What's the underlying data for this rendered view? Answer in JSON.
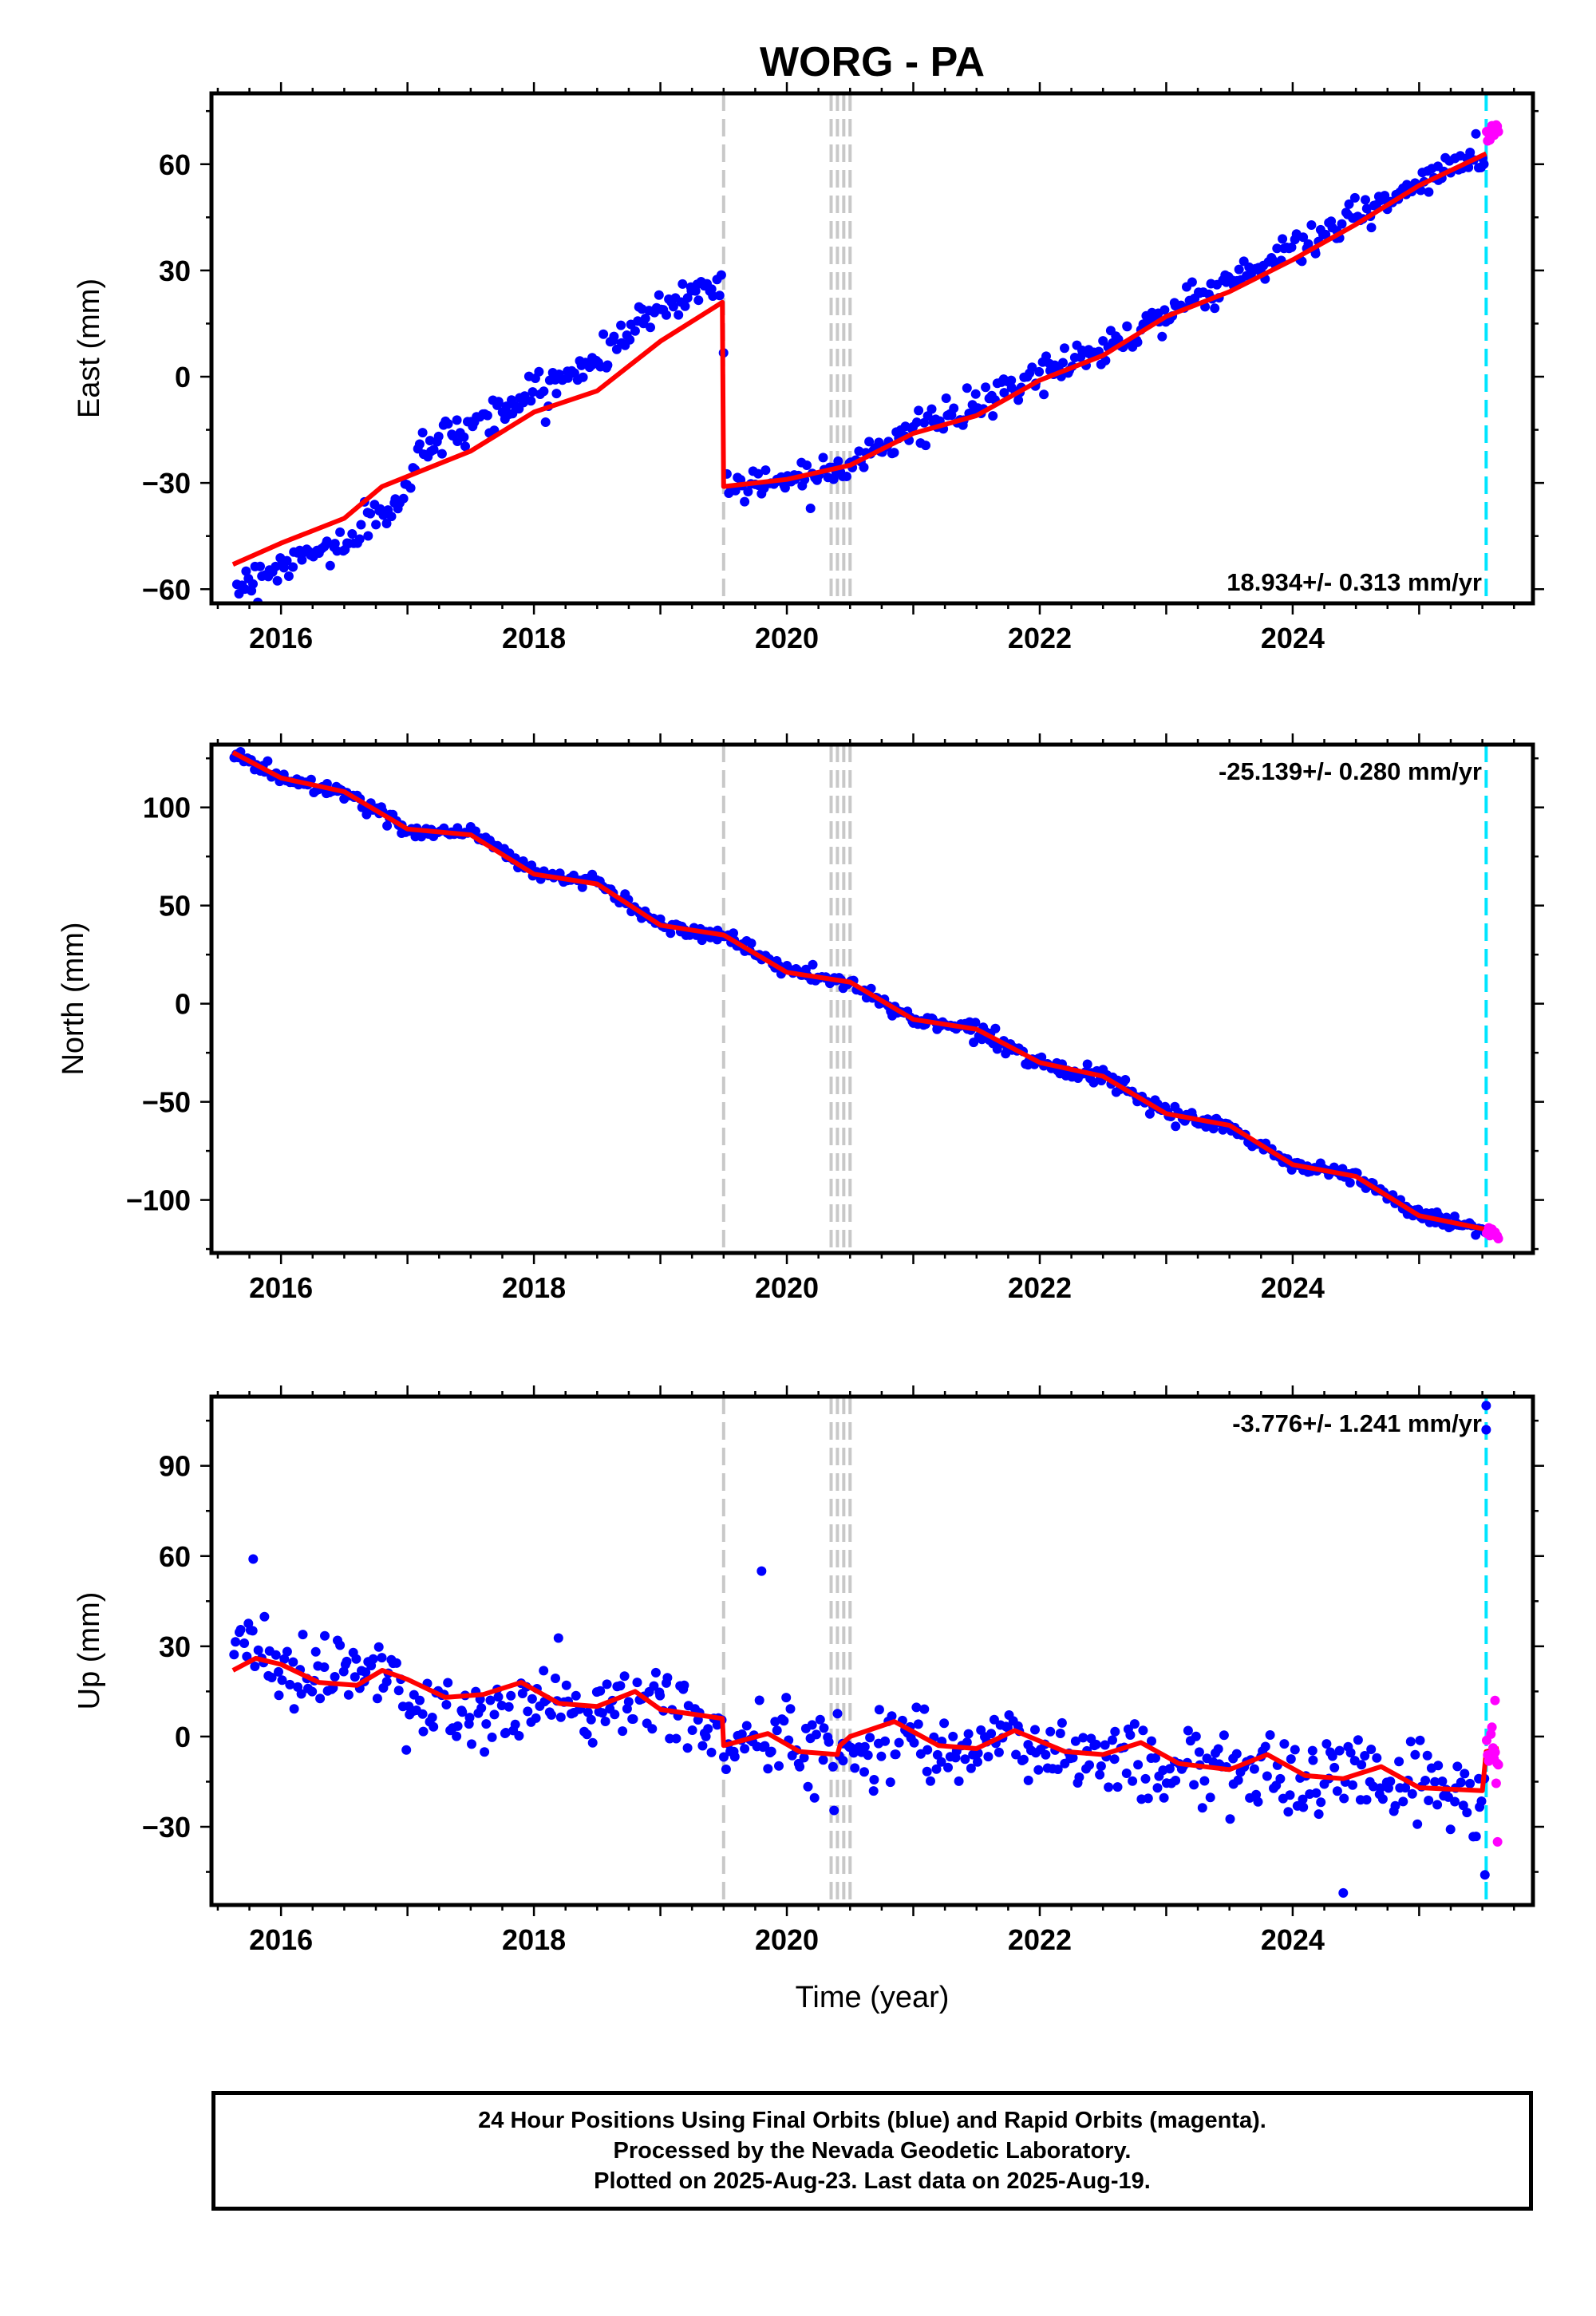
{
  "title": "WORG - PA",
  "colors": {
    "final_orbits": "#0000ff",
    "rapid_orbits": "#ff00ff",
    "model": "#ff0000",
    "equipment_change": "#c8c8c8",
    "last_data": "#00e5ff"
  },
  "x_axis": {
    "label": "Time (year)",
    "range": [
      2015.45,
      2025.9
    ],
    "ticks": [
      2016,
      2018,
      2020,
      2022,
      2024
    ],
    "tick_labels": [
      "2016",
      "2018",
      "2020",
      "2022",
      "2024"
    ]
  },
  "chart_data": [
    {
      "type": "scatter",
      "id": "east",
      "ylabel": "East (mm)",
      "ylim": [
        -64,
        80
      ],
      "yticks": [
        -60,
        -30,
        0,
        30,
        60
      ],
      "ytick_labels": [
        "−60",
        "−30",
        "0",
        "30",
        "60"
      ],
      "velocity_label": "18.934+/- 0.313 mm/yr",
      "velocity_position": "bottom-right",
      "data_start": 2015.62,
      "final_end": 2025.53,
      "rapid_end": 2025.63,
      "offsets": [
        2019.5,
        2020.35,
        2020.4,
        2020.45,
        2020.5
      ],
      "last_data_line": 2025.53,
      "series": [
        {
          "name": "Final Orbits",
          "color": "#0000ff",
          "nodes": [
            [
              2015.62,
              -60
            ],
            [
              2016.0,
              -53
            ],
            [
              2016.5,
              -47
            ],
            [
              2017.0,
              -33
            ],
            [
              2017.1,
              -20
            ],
            [
              2018.0,
              -5
            ],
            [
              2018.5,
              5
            ],
            [
              2019.0,
              20
            ],
            [
              2019.49,
              27
            ],
            [
              2019.52,
              -31
            ],
            [
              2020.0,
              -29
            ],
            [
              2020.5,
              -24
            ],
            [
              2021.0,
              -15
            ],
            [
              2021.5,
              -9
            ],
            [
              2022.0,
              1
            ],
            [
              2022.5,
              8
            ],
            [
              2023.0,
              18
            ],
            [
              2023.5,
              27
            ],
            [
              2024.0,
              36
            ],
            [
              2024.5,
              45
            ],
            [
              2025.0,
              54
            ],
            [
              2025.53,
              64
            ]
          ]
        },
        {
          "name": "Rapid Orbits",
          "color": "#ff00ff",
          "nodes": [
            [
              2025.55,
              68
            ],
            [
              2025.63,
              70
            ]
          ]
        }
      ],
      "model": {
        "color": "#ff0000",
        "nodes": [
          [
            2015.62,
            -53
          ],
          [
            2016.0,
            -47
          ],
          [
            2016.5,
            -40
          ],
          [
            2016.8,
            -31
          ],
          [
            2017.5,
            -21
          ],
          [
            2018.0,
            -10
          ],
          [
            2018.5,
            -4
          ],
          [
            2019.0,
            10
          ],
          [
            2019.49,
            21
          ],
          [
            2019.5,
            -31
          ],
          [
            2020.0,
            -29
          ],
          [
            2020.5,
            -25
          ],
          [
            2021.0,
            -16
          ],
          [
            2021.5,
            -11
          ],
          [
            2022.0,
            -1
          ],
          [
            2022.5,
            6
          ],
          [
            2023.0,
            17
          ],
          [
            2023.5,
            24
          ],
          [
            2024.0,
            33
          ],
          [
            2024.5,
            43
          ],
          [
            2025.0,
            54
          ],
          [
            2025.53,
            63
          ]
        ]
      }
    },
    {
      "type": "scatter",
      "id": "north",
      "ylabel": "North (mm)",
      "ylim": [
        -127,
        132
      ],
      "yticks": [
        -100,
        -50,
        0,
        50,
        100
      ],
      "ytick_labels": [
        "−100",
        "−50",
        "0",
        "50",
        "100"
      ],
      "velocity_label": "-25.139+/- 0.280 mm/yr",
      "velocity_position": "top-right",
      "data_start": 2015.62,
      "final_end": 2025.53,
      "rapid_end": 2025.63,
      "offsets": [
        2019.5,
        2020.35,
        2020.4,
        2020.45,
        2020.5
      ],
      "last_data_line": 2025.53,
      "series": [
        {
          "name": "Final Orbits",
          "color": "#0000ff",
          "nodes": [
            [
              2015.62,
              128
            ],
            [
              2016.0,
              115
            ],
            [
              2016.5,
              108
            ],
            [
              2017.0,
              88
            ],
            [
              2017.5,
              88
            ],
            [
              2018.0,
              67
            ],
            [
              2018.5,
              62
            ],
            [
              2019.0,
              40
            ],
            [
              2019.5,
              35
            ],
            [
              2020.0,
              17
            ],
            [
              2020.5,
              10
            ],
            [
              2021.0,
              -8
            ],
            [
              2021.5,
              -13
            ],
            [
              2022.0,
              -30
            ],
            [
              2022.5,
              -38
            ],
            [
              2023.0,
              -56
            ],
            [
              2023.5,
              -63
            ],
            [
              2024.0,
              -82
            ],
            [
              2024.5,
              -88
            ],
            [
              2025.0,
              -108
            ],
            [
              2025.53,
              -115
            ]
          ]
        },
        {
          "name": "Rapid Orbits",
          "color": "#ff00ff",
          "nodes": [
            [
              2025.55,
              -117
            ],
            [
              2025.63,
              -120
            ]
          ]
        }
      ],
      "model": {
        "color": "#ff0000",
        "nodes": [
          [
            2015.62,
            128
          ],
          [
            2016.0,
            115
          ],
          [
            2016.5,
            108
          ],
          [
            2017.0,
            89
          ],
          [
            2017.5,
            86
          ],
          [
            2018.0,
            66
          ],
          [
            2018.5,
            61
          ],
          [
            2019.0,
            40
          ],
          [
            2019.5,
            35
          ],
          [
            2020.0,
            16
          ],
          [
            2020.5,
            11
          ],
          [
            2021.0,
            -8
          ],
          [
            2021.5,
            -13
          ],
          [
            2022.0,
            -30
          ],
          [
            2022.5,
            -37
          ],
          [
            2023.0,
            -56
          ],
          [
            2023.5,
            -62
          ],
          [
            2024.0,
            -82
          ],
          [
            2024.5,
            -88
          ],
          [
            2025.0,
            -108
          ],
          [
            2025.53,
            -115
          ]
        ]
      }
    },
    {
      "type": "scatter",
      "id": "up",
      "ylabel": "Up (mm)",
      "ylim": [
        -56,
        113
      ],
      "yticks": [
        -30,
        0,
        30,
        60,
        90
      ],
      "ytick_labels": [
        "−30",
        "0",
        "30",
        "60",
        "90"
      ],
      "velocity_label": "-3.776+/- 1.241 mm/yr",
      "velocity_position": "top-right",
      "data_start": 2015.62,
      "final_end": 2025.53,
      "rapid_end": 2025.63,
      "offsets": [
        2019.5,
        2020.35,
        2020.4,
        2020.45,
        2020.5
      ],
      "last_data_line": 2025.53,
      "series": [
        {
          "name": "Final Orbits",
          "color": "#0000ff",
          "nodes": [
            [
              2015.62,
              28
            ],
            [
              2016.0,
              24
            ],
            [
              2016.5,
              20
            ],
            [
              2016.8,
              25
            ],
            [
              2017.0,
              12
            ],
            [
              2017.5,
              4
            ],
            [
              2018.0,
              12
            ],
            [
              2018.5,
              8
            ],
            [
              2019.0,
              13
            ],
            [
              2019.5,
              -2
            ],
            [
              2020.0,
              -2
            ],
            [
              2020.5,
              -5
            ],
            [
              2021.0,
              1
            ],
            [
              2021.5,
              -3
            ],
            [
              2022.0,
              -4
            ],
            [
              2022.5,
              -6
            ],
            [
              2023.0,
              -10
            ],
            [
              2023.5,
              -10
            ],
            [
              2024.0,
              -14
            ],
            [
              2024.5,
              -12
            ],
            [
              2025.0,
              -16
            ],
            [
              2025.53,
              -20
            ]
          ],
          "outliers": [
            [
              2015.78,
              59
            ],
            [
              2019.8,
              55
            ],
            [
              2024.4,
              -52
            ],
            [
              2025.52,
              -46
            ],
            [
              2025.53,
              102
            ],
            [
              2025.53,
              110
            ]
          ]
        },
        {
          "name": "Rapid Orbits",
          "color": "#ff00ff",
          "nodes": [
            [
              2025.55,
              -5
            ],
            [
              2025.63,
              -8
            ]
          ],
          "outliers": [
            [
              2025.6,
              12
            ],
            [
              2025.62,
              -35
            ]
          ]
        }
      ],
      "model": {
        "color": "#ff0000",
        "nodes": [
          [
            2015.62,
            22
          ],
          [
            2015.8,
            26
          ],
          [
            2016.0,
            24
          ],
          [
            2016.3,
            18
          ],
          [
            2016.6,
            17
          ],
          [
            2016.8,
            22
          ],
          [
            2017.0,
            19
          ],
          [
            2017.3,
            13
          ],
          [
            2017.6,
            14
          ],
          [
            2017.9,
            18
          ],
          [
            2018.2,
            11
          ],
          [
            2018.5,
            10
          ],
          [
            2018.8,
            15
          ],
          [
            2019.0,
            9
          ],
          [
            2019.49,
            6
          ],
          [
            2019.5,
            -3
          ],
          [
            2019.85,
            1
          ],
          [
            2020.1,
            -5
          ],
          [
            2020.4,
            -6
          ],
          [
            2020.42,
            -3
          ],
          [
            2020.5,
            0
          ],
          [
            2020.85,
            5
          ],
          [
            2021.2,
            -3
          ],
          [
            2021.5,
            -4
          ],
          [
            2021.8,
            2
          ],
          [
            2022.2,
            -5
          ],
          [
            2022.5,
            -6
          ],
          [
            2022.8,
            -2
          ],
          [
            2023.1,
            -9
          ],
          [
            2023.5,
            -11
          ],
          [
            2023.8,
            -6
          ],
          [
            2024.1,
            -13
          ],
          [
            2024.4,
            -14
          ],
          [
            2024.7,
            -10
          ],
          [
            2025.0,
            -17
          ],
          [
            2025.5,
            -18
          ],
          [
            2025.53,
            -5
          ],
          [
            2025.63,
            -4
          ]
        ]
      }
    }
  ],
  "footer": {
    "line1": "24 Hour Positions Using Final Orbits (blue) and Rapid Orbits (magenta).",
    "line2": "Processed by the Nevada Geodetic Laboratory.",
    "line3": "Plotted on 2025-Aug-23. Last data on 2025-Aug-19."
  }
}
